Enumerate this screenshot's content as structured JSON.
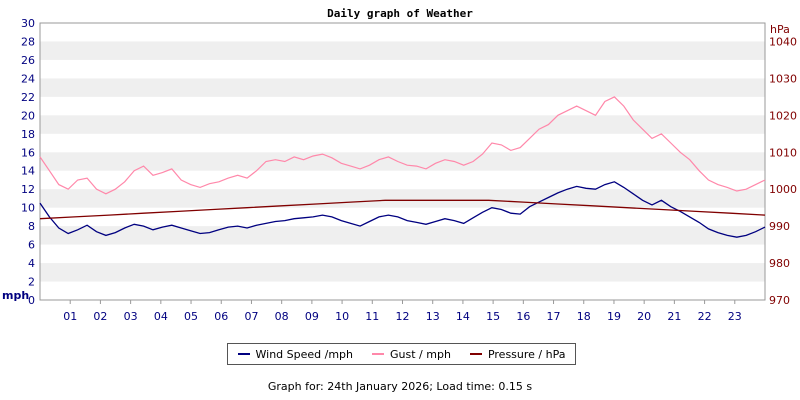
{
  "chart_data": {
    "type": "line",
    "title": "Daily graph of Weather",
    "x_tick_labels": [
      "01",
      "02",
      "03",
      "04",
      "05",
      "06",
      "07",
      "08",
      "09",
      "10",
      "11",
      "12",
      "13",
      "14",
      "15",
      "16",
      "17",
      "18",
      "19",
      "20",
      "21",
      "22",
      "23"
    ],
    "y_left": {
      "unit_label": "mph",
      "range": [
        0,
        30
      ],
      "ticks": [
        0,
        2,
        4,
        6,
        8,
        10,
        12,
        14,
        16,
        18,
        20,
        22,
        24,
        26,
        28,
        30
      ]
    },
    "y_right": {
      "unit_label": "hPa",
      "range": [
        970,
        1045
      ],
      "ticks": [
        970,
        980,
        990,
        1000,
        1010,
        1020,
        1030,
        1040
      ]
    },
    "grid": "alternating horizontal bands",
    "legend_placement": "bottom",
    "series": [
      {
        "name": "Wind Speed /mph",
        "axis": "left",
        "color": "#000080",
        "values": [
          10.5,
          9.0,
          7.8,
          7.2,
          7.6,
          8.1,
          7.4,
          7.0,
          7.3,
          7.8,
          8.2,
          8.0,
          7.6,
          7.9,
          8.1,
          7.8,
          7.5,
          7.2,
          7.3,
          7.6,
          7.9,
          8.0,
          7.8,
          8.1,
          8.3,
          8.5,
          8.6,
          8.8,
          8.9,
          9.0,
          9.2,
          9.0,
          8.6,
          8.3,
          8.0,
          8.5,
          9.0,
          9.2,
          9.0,
          8.6,
          8.4,
          8.2,
          8.5,
          8.8,
          8.6,
          8.3,
          8.9,
          9.5,
          10.0,
          9.8,
          9.4,
          9.3,
          10.1,
          10.6,
          11.1,
          11.6,
          12.0,
          12.3,
          12.1,
          12.0,
          12.5,
          12.8,
          12.2,
          11.5,
          10.8,
          10.3,
          10.8,
          10.1,
          9.6,
          9.0,
          8.4,
          7.7,
          7.3,
          7.0,
          6.8,
          7.0,
          7.4,
          7.9
        ]
      },
      {
        "name": "Gust / mph",
        "axis": "left",
        "color": "#ff88aa",
        "values": [
          15.5,
          14.0,
          12.5,
          12.0,
          13.0,
          13.2,
          12.0,
          11.5,
          12.0,
          12.8,
          14.0,
          14.5,
          13.5,
          13.8,
          14.2,
          13.0,
          12.5,
          12.2,
          12.6,
          12.8,
          13.2,
          13.5,
          13.2,
          14.0,
          15.0,
          15.2,
          15.0,
          15.5,
          15.2,
          15.6,
          15.8,
          15.4,
          14.8,
          14.5,
          14.2,
          14.6,
          15.2,
          15.5,
          15.0,
          14.6,
          14.5,
          14.2,
          14.8,
          15.2,
          15.0,
          14.6,
          15.0,
          15.8,
          17.0,
          16.8,
          16.2,
          16.5,
          17.5,
          18.5,
          19.0,
          20.0,
          20.5,
          21.0,
          20.5,
          20.0,
          21.5,
          22.0,
          21.0,
          19.5,
          18.5,
          17.5,
          18.0,
          17.0,
          16.0,
          15.2,
          14.0,
          13.0,
          12.5,
          12.2,
          11.8,
          12.0,
          12.5,
          13.0
        ]
      },
      {
        "name": "Pressure / hPa",
        "axis": "right",
        "color": "#800000",
        "values": [
          992.0,
          992.5,
          993.0,
          993.5,
          994.0,
          994.5,
          995.0,
          995.5,
          996.0,
          996.5,
          997.0,
          997.0,
          997.0,
          997.0,
          996.5,
          996.0,
          995.5,
          995.0,
          994.5,
          994.0,
          993.5,
          993.0
        ]
      }
    ]
  },
  "legend": {
    "wind_label": "Wind Speed /mph",
    "gust_label": "Gust / mph",
    "pressure_label": "Pressure / hPa"
  },
  "footer": "Graph for: 24th January 2026; Load time: 0.15 s"
}
